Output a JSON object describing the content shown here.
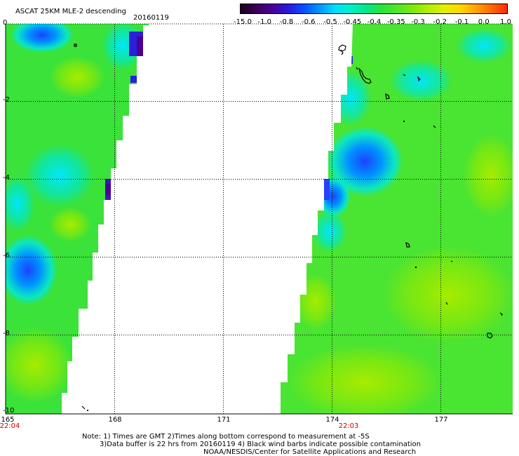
{
  "header": {
    "title": "ASCAT 25KM MLE-2 descending",
    "date": "20160119"
  },
  "colorbar": {
    "labels": [
      "-15.0",
      "-1.0",
      "-0.8",
      "-0.6",
      "-0.5",
      "-0.45",
      "-0.4",
      "-0.35",
      "-0.3",
      "-0.2",
      "-0.1",
      "0.0",
      "1.0"
    ],
    "colors": [
      "#1a0020",
      "#3a0058",
      "#4a0096",
      "#2a18d8",
      "#0a4cff",
      "#0096ff",
      "#00dcff",
      "#00f0c8",
      "#00e88c",
      "#28e23c",
      "#50e628",
      "#82e80a",
      "#b4ee00",
      "#e2f000",
      "#ffd800",
      "#ffa400",
      "#ff6a00",
      "#ff2a0a"
    ]
  },
  "map": {
    "lat_labels": [
      "0",
      "-2",
      "-4",
      "-6",
      "-8",
      "-10"
    ],
    "lon_labels": [
      "165",
      "168",
      "171",
      "174",
      "177"
    ],
    "times": [
      {
        "lon": "165",
        "label": "22:04"
      },
      {
        "lon": "174",
        "label": "22:03"
      }
    ]
  },
  "notes": [
    "Note: 1) Times are GMT 2)Times along bottom correspond to measurement at -5S",
    "3)Data buffer is 22 hrs from 20160119 4) Black wind barbs indicate possible contamination",
    "NOAA/NESDIS/Center for Satellite Applications and Research"
  ]
}
